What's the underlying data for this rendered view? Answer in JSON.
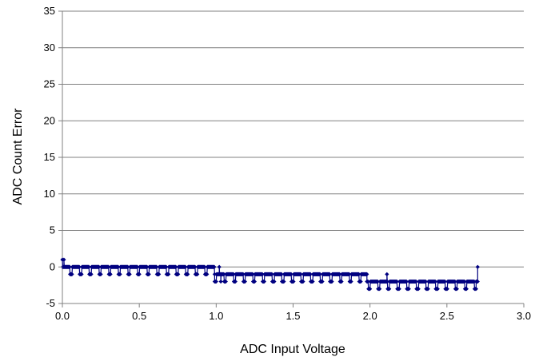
{
  "chart_data": {
    "type": "scatter",
    "title": "",
    "xlabel": "ADC Input Voltage",
    "ylabel": "ADC Count Error",
    "xlim": [
      0.0,
      3.0
    ],
    "ylim": [
      -5,
      35
    ],
    "x_ticks": [
      "0.0",
      "0.5",
      "1.0",
      "1.5",
      "2.0",
      "2.5",
      "3.0"
    ],
    "y_ticks": [
      "-5",
      "0",
      "5",
      "10",
      "15",
      "20",
      "25",
      "30",
      "35"
    ],
    "grid": "horizontal",
    "legend": "none",
    "series": [
      {
        "color": "#000080",
        "marker": "diamond",
        "segments": [
          {
            "x_start": 0.0,
            "x_end": 0.02,
            "base": 0,
            "alt": 1
          },
          {
            "x_start": 0.02,
            "x_end": 0.99,
            "base": 0,
            "alt": -1
          },
          {
            "x_start": 0.99,
            "x_end": 1.98,
            "base": -1,
            "alt": -2
          },
          {
            "x_start": 1.98,
            "x_end": 2.69,
            "base": -2,
            "alt": -3
          },
          {
            "x_start": 2.69,
            "x_end": 2.7,
            "base": -2,
            "alt": 0
          }
        ],
        "notes_points": [
          {
            "x": 0.01,
            "y": 1
          },
          {
            "x": 1.02,
            "y": 0
          },
          {
            "x": 1.03,
            "y": -2
          },
          {
            "x": 2.11,
            "y": -1
          },
          {
            "x": 2.7,
            "y": 0
          }
        ]
      }
    ]
  },
  "colors": {
    "series": "#000080",
    "grid": "#808080",
    "axis": "#808080"
  }
}
